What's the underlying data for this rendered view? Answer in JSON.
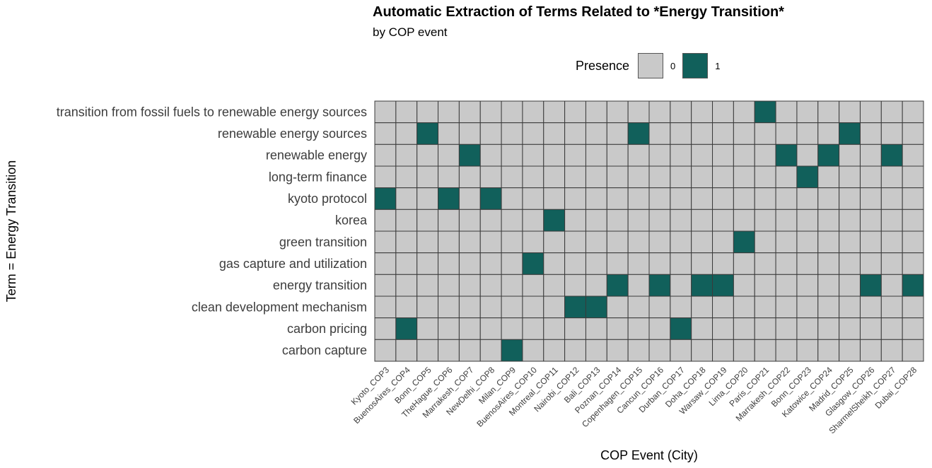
{
  "chart_data": {
    "type": "heatmap",
    "title": "Automatic Extraction of Terms Related to *Energy Transition*",
    "subtitle": "by COP event",
    "xlabel": "COP Event (City)",
    "ylabel": "Term = Energy Transition",
    "legend": {
      "title": "Presence",
      "position": "top",
      "entries": [
        {
          "label": "0",
          "color": "#c9c9c9"
        },
        {
          "label": "1",
          "color": "#11605b"
        }
      ]
    },
    "x": [
      "Kyoto_COP3",
      "BuenosAires_COP4",
      "Bonn_COP5",
      "TheHague_COP6",
      "Marrakesh_COP7",
      "NewDelhi_COP8",
      "Milan_COP9",
      "BuenosAires_COP10",
      "Montreal_COP11",
      "Nairobi_COP12",
      "Bali_COP13",
      "Poznan_COP14",
      "Copenhagen_COP15",
      "Cancun_COP16",
      "Durban_COP17",
      "Doha_COP18",
      "Warsaw_COP19",
      "Lima_COP20",
      "Paris_COP21",
      "Marrakesh_COP22",
      "Bonn_COP23",
      "Katowice_COP24",
      "Madrid_COP25",
      "Glasgow_COP26",
      "SharmelSheikh_COP27",
      "Dubai_COP28"
    ],
    "y": [
      "transition from fossil fuels to renewable energy sources",
      "renewable energy sources",
      "renewable energy",
      "long-term finance",
      "kyoto protocol",
      "korea",
      "green transition",
      "gas capture and utilization",
      "energy transition",
      "clean development mechanism",
      "carbon pricing",
      "carbon capture"
    ],
    "values": [
      [
        0,
        0,
        0,
        0,
        0,
        0,
        0,
        0,
        0,
        0,
        0,
        0,
        0,
        0,
        0,
        0,
        0,
        0,
        1,
        0,
        0,
        0,
        0,
        0,
        0,
        0
      ],
      [
        0,
        0,
        1,
        0,
        0,
        0,
        0,
        0,
        0,
        0,
        0,
        0,
        1,
        0,
        0,
        0,
        0,
        0,
        0,
        0,
        0,
        0,
        1,
        0,
        0,
        0
      ],
      [
        0,
        0,
        0,
        0,
        1,
        0,
        0,
        0,
        0,
        0,
        0,
        0,
        0,
        0,
        0,
        0,
        0,
        0,
        0,
        1,
        0,
        1,
        0,
        0,
        1,
        0
      ],
      [
        0,
        0,
        0,
        0,
        0,
        0,
        0,
        0,
        0,
        0,
        0,
        0,
        0,
        0,
        0,
        0,
        0,
        0,
        0,
        0,
        1,
        0,
        0,
        0,
        0,
        0
      ],
      [
        1,
        0,
        0,
        1,
        0,
        1,
        0,
        0,
        0,
        0,
        0,
        0,
        0,
        0,
        0,
        0,
        0,
        0,
        0,
        0,
        0,
        0,
        0,
        0,
        0,
        0
      ],
      [
        0,
        0,
        0,
        0,
        0,
        0,
        0,
        0,
        1,
        0,
        0,
        0,
        0,
        0,
        0,
        0,
        0,
        0,
        0,
        0,
        0,
        0,
        0,
        0,
        0,
        0
      ],
      [
        0,
        0,
        0,
        0,
        0,
        0,
        0,
        0,
        0,
        0,
        0,
        0,
        0,
        0,
        0,
        0,
        0,
        1,
        0,
        0,
        0,
        0,
        0,
        0,
        0,
        0
      ],
      [
        0,
        0,
        0,
        0,
        0,
        0,
        0,
        1,
        0,
        0,
        0,
        0,
        0,
        0,
        0,
        0,
        0,
        0,
        0,
        0,
        0,
        0,
        0,
        0,
        0,
        0
      ],
      [
        0,
        0,
        0,
        0,
        0,
        0,
        0,
        0,
        0,
        0,
        0,
        1,
        0,
        1,
        0,
        1,
        1,
        0,
        0,
        0,
        0,
        0,
        0,
        1,
        0,
        1
      ],
      [
        0,
        0,
        0,
        0,
        0,
        0,
        0,
        0,
        0,
        1,
        1,
        0,
        0,
        0,
        0,
        0,
        0,
        0,
        0,
        0,
        0,
        0,
        0,
        0,
        0,
        0
      ],
      [
        0,
        1,
        0,
        0,
        0,
        0,
        0,
        0,
        0,
        0,
        0,
        0,
        0,
        0,
        1,
        0,
        0,
        0,
        0,
        0,
        0,
        0,
        0,
        0,
        0,
        0
      ],
      [
        0,
        0,
        0,
        0,
        0,
        0,
        1,
        0,
        0,
        0,
        0,
        0,
        0,
        0,
        0,
        0,
        0,
        0,
        0,
        0,
        0,
        0,
        0,
        0,
        0,
        0
      ]
    ],
    "grid": false
  }
}
